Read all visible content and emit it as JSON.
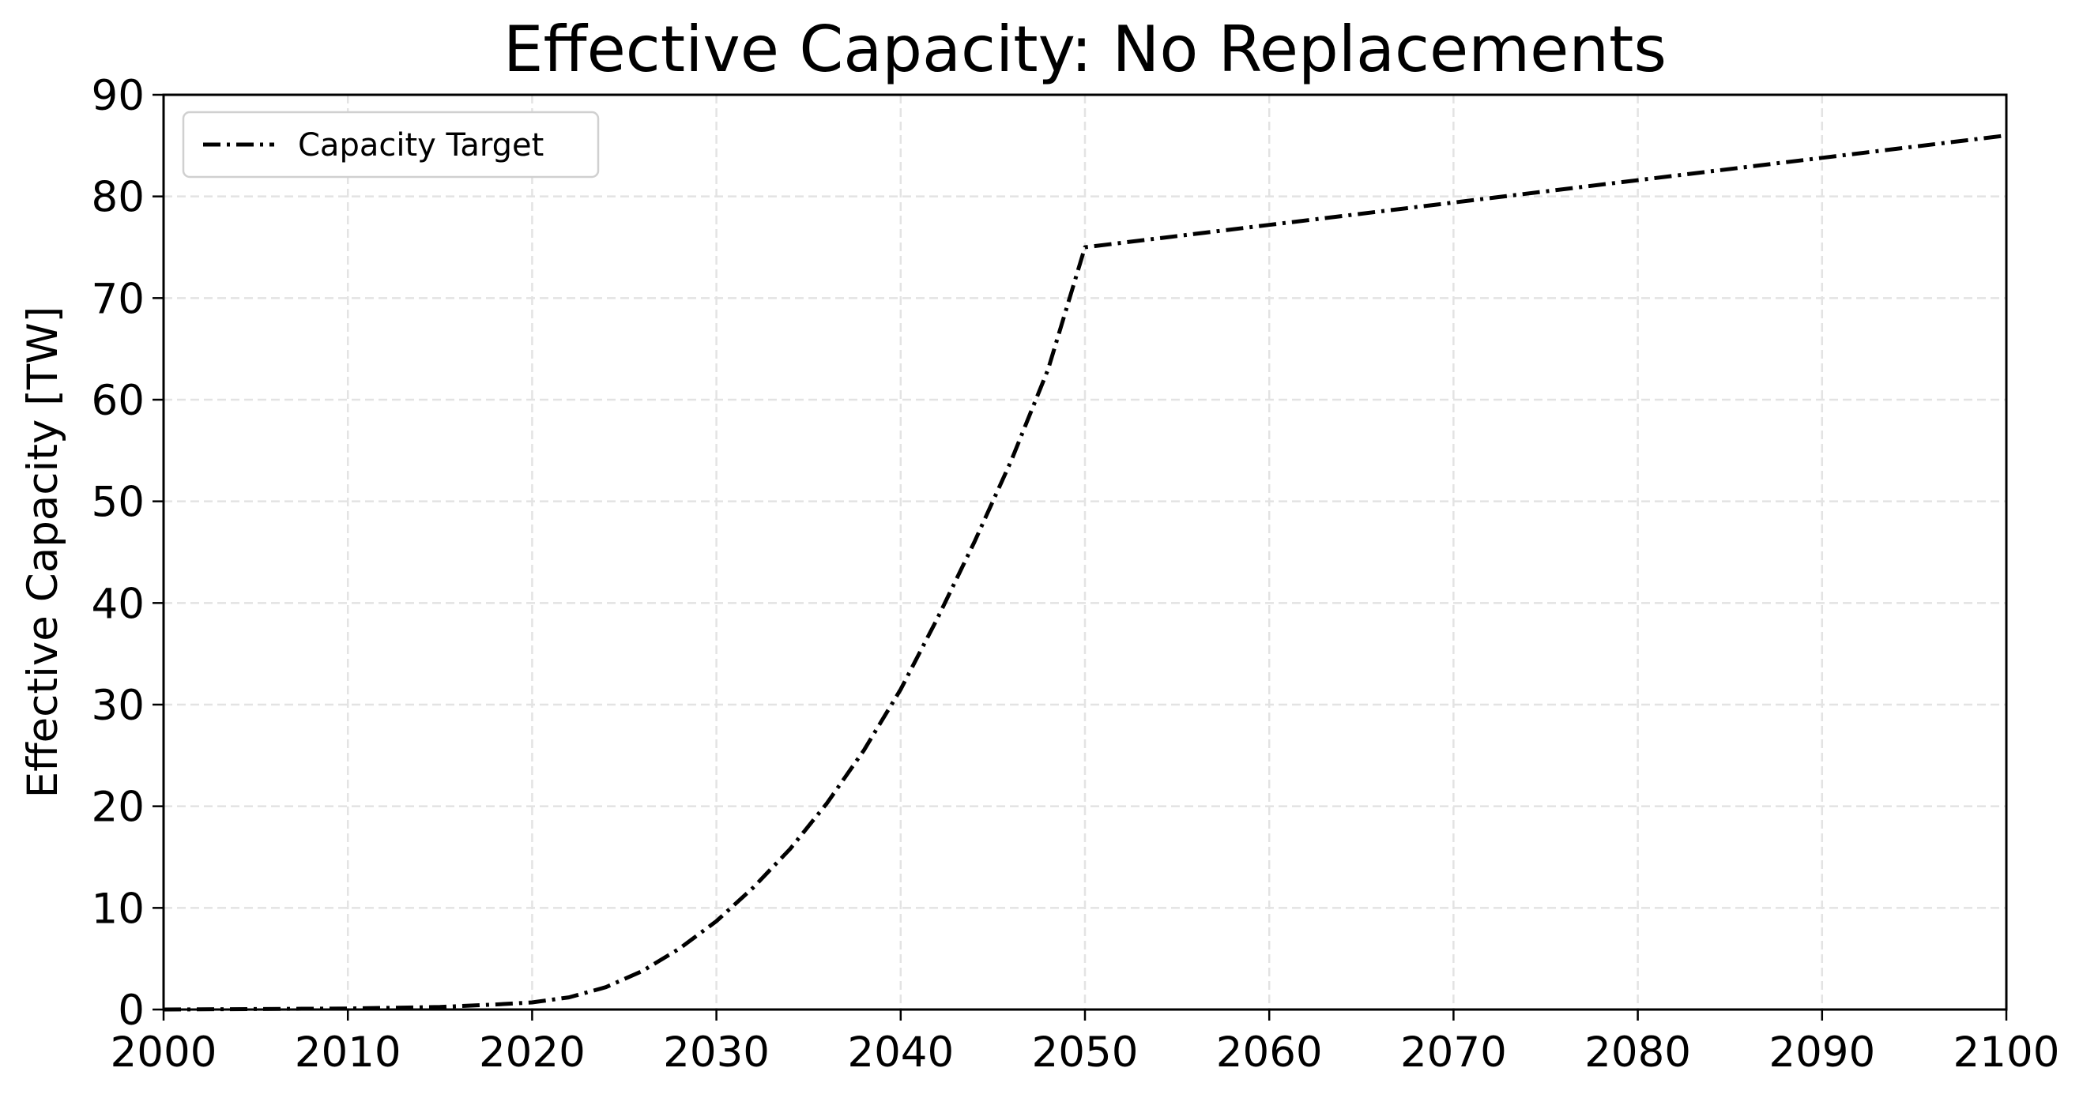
{
  "chart_data": {
    "type": "line",
    "title": "Effective Capacity: No Replacements",
    "xlabel": "",
    "ylabel": "Effective Capacity [TW]",
    "xlim": [
      2000,
      2100
    ],
    "ylim": [
      0,
      90
    ],
    "xticks": [
      2000,
      2010,
      2020,
      2030,
      2040,
      2050,
      2060,
      2070,
      2080,
      2090,
      2100
    ],
    "yticks": [
      0,
      10,
      20,
      30,
      40,
      50,
      60,
      70,
      80,
      90
    ],
    "grid": true,
    "legend_position": "top-left",
    "series": [
      {
        "name": "Capacity Target",
        "color": "#000000",
        "linestyle": "dash-dot",
        "x": [
          2000,
          2005,
          2010,
          2015,
          2018,
          2020,
          2022,
          2024,
          2026,
          2028,
          2030,
          2032,
          2034,
          2036,
          2038,
          2040,
          2042,
          2044,
          2046,
          2048,
          2050,
          2060,
          2070,
          2080,
          2090,
          2100
        ],
        "y": [
          0.0,
          0.05,
          0.1,
          0.25,
          0.5,
          0.7,
          1.2,
          2.2,
          3.8,
          6.0,
          8.7,
          12.0,
          15.8,
          20.3,
          25.5,
          31.5,
          38.5,
          46.0,
          54.0,
          63.0,
          75.0,
          77.2,
          79.4,
          81.6,
          83.8,
          86.0
        ]
      }
    ]
  }
}
